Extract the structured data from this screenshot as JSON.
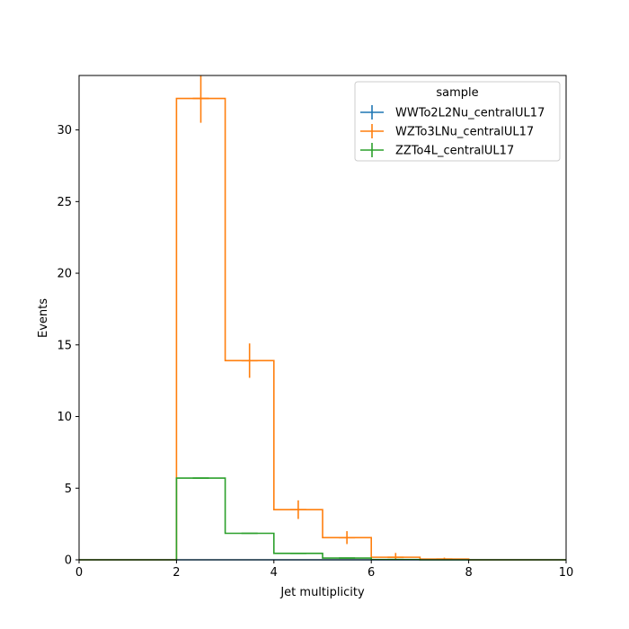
{
  "chart_data": {
    "type": "histogram",
    "title": "",
    "xlabel": "Jet multiplicity",
    "ylabel": "Events",
    "xlim": [
      0,
      10
    ],
    "ylim": [
      0,
      33.8
    ],
    "xticks": [
      "0",
      "2",
      "4",
      "6",
      "8",
      "10"
    ],
    "yticks": [
      "0",
      "5",
      "10",
      "15",
      "20",
      "25",
      "30"
    ],
    "grid": false,
    "legend": {
      "title": "sample",
      "placement": "top-right"
    },
    "bin_edges": [
      0,
      1,
      2,
      3,
      4,
      5,
      6,
      7,
      8,
      9,
      10
    ],
    "series": [
      {
        "name": "WWTo2L2Nu_centralUL17",
        "color": "#1f77b4",
        "values": [
          0,
          0,
          0,
          0,
          0,
          0,
          0,
          0,
          0,
          0
        ],
        "errors": [
          0,
          0,
          0,
          0,
          0,
          0,
          0,
          0,
          0,
          0
        ]
      },
      {
        "name": "WZTo3LNu_centralUL17",
        "color": "#ff7f0e",
        "values": [
          0,
          0,
          32.2,
          13.9,
          3.5,
          1.55,
          0.18,
          0.05,
          0,
          0
        ],
        "errors": [
          0,
          0,
          1.7,
          1.2,
          0.65,
          0.45,
          0.3,
          0.1,
          0,
          0
        ]
      },
      {
        "name": "ZZTo4L_centralUL17",
        "color": "#2ca02c",
        "values": [
          0,
          0,
          5.7,
          1.85,
          0.45,
          0.12,
          0.02,
          0,
          0,
          0
        ],
        "errors": [
          0,
          0,
          0,
          0,
          0,
          0,
          0,
          0,
          0,
          0
        ]
      }
    ]
  }
}
